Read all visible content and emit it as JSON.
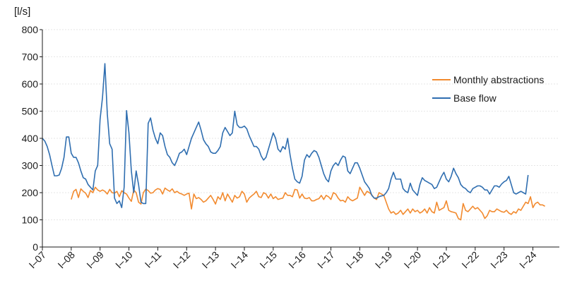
{
  "chart_data": {
    "type": "line",
    "title": "",
    "ylabel": "[l/s]",
    "xlabel": "",
    "ylim": [
      0,
      800
    ],
    "yticks": [
      0,
      100,
      200,
      300,
      400,
      500,
      600,
      700,
      800
    ],
    "grid": "horizontal",
    "legend_position": "right",
    "x_tick_labels": [
      "I–07",
      "I–08",
      "I–09",
      "I–10",
      "I–11",
      "I–12",
      "I–13",
      "I–14",
      "I–15",
      "I–16",
      "I–17",
      "I–18",
      "I–19",
      "I–20",
      "I–21",
      "I–22",
      "I–23",
      "I–24"
    ],
    "x_start": "2007-01",
    "x_end": "2024-12",
    "series": [
      {
        "name": "Monthly abstractions",
        "color": "#f28a2e",
        "start": "2008-01",
        "values": [
          175,
          205,
          212,
          182,
          214,
          205,
          198,
          182,
          208,
          200,
          220,
          210,
          205,
          210,
          205,
          195,
          212,
          200,
          198,
          205,
          185,
          207,
          200,
          195,
          180,
          168,
          210,
          200,
          165,
          158,
          200,
          213,
          208,
          198,
          200,
          210,
          215,
          212,
          195,
          217,
          210,
          205,
          214,
          200,
          205,
          198,
          195,
          190,
          195,
          198,
          140,
          195,
          178,
          182,
          175,
          165,
          170,
          180,
          190,
          175,
          158,
          185,
          175,
          200,
          170,
          195,
          180,
          165,
          190,
          180,
          185,
          205,
          195,
          165,
          180,
          188,
          195,
          205,
          185,
          182,
          200,
          195,
          180,
          195,
          178,
          185,
          175,
          178,
          180,
          200,
          190,
          190,
          185,
          212,
          210,
          180,
          195,
          180,
          178,
          182,
          170,
          170,
          175,
          178,
          190,
          175,
          190,
          185,
          175,
          200,
          195,
          180,
          170,
          172,
          165,
          185,
          175,
          170,
          175,
          180,
          220,
          205,
          190,
          205,
          200,
          192,
          180,
          175,
          200,
          195,
          190,
          165,
          140,
          125,
          130,
          120,
          125,
          135,
          120,
          130,
          140,
          125,
          140,
          130,
          135,
          125,
          130,
          140,
          125,
          145,
          130,
          125,
          165,
          135,
          140,
          145,
          170,
          135,
          130,
          128,
          125,
          105,
          100,
          160,
          135,
          130,
          140,
          150,
          140,
          145,
          135,
          125,
          105,
          115,
          135,
          130,
          130,
          140,
          135,
          130,
          128,
          135,
          125,
          120,
          130,
          125,
          140,
          135,
          150,
          165,
          160,
          185,
          145,
          160,
          165,
          155,
          155,
          150
        ]
      },
      {
        "name": "Base flow",
        "color": "#2f6eb0",
        "start": "2007-01",
        "values": [
          400,
          390,
          370,
          340,
          300,
          262,
          262,
          265,
          290,
          330,
          405,
          405,
          345,
          330,
          330,
          310,
          280,
          255,
          250,
          230,
          220,
          210,
          280,
          300,
          470,
          550,
          675,
          490,
          380,
          360,
          180,
          160,
          170,
          145,
          220,
          502,
          420,
          280,
          200,
          280,
          230,
          165,
          160,
          160,
          455,
          475,
          430,
          400,
          380,
          420,
          410,
          370,
          340,
          330,
          310,
          300,
          320,
          345,
          350,
          360,
          340,
          370,
          400,
          420,
          440,
          460,
          430,
          395,
          380,
          370,
          350,
          345,
          345,
          355,
          370,
          420,
          440,
          425,
          410,
          420,
          500,
          450,
          440,
          440,
          445,
          435,
          410,
          390,
          370,
          370,
          360,
          335,
          320,
          330,
          360,
          390,
          420,
          400,
          360,
          350,
          370,
          360,
          400,
          340,
          290,
          250,
          240,
          235,
          260,
          320,
          340,
          330,
          345,
          355,
          350,
          330,
          300,
          270,
          250,
          240,
          280,
          300,
          310,
          300,
          320,
          335,
          330,
          280,
          270,
          290,
          310,
          310,
          290,
          265,
          240,
          228,
          215,
          190,
          180,
          180,
          185,
          188,
          190,
          200,
          215,
          250,
          275,
          250,
          250,
          250,
          215,
          205,
          200,
          235,
          210,
          200,
          190,
          230,
          255,
          245,
          240,
          235,
          230,
          215,
          220,
          240,
          260,
          275,
          250,
          240,
          260,
          290,
          270,
          255,
          230,
          220,
          215,
          205,
          200,
          215,
          220,
          225,
          225,
          220,
          210,
          210,
          195,
          210,
          225,
          225,
          220,
          232,
          240,
          245,
          260,
          230,
          200,
          195,
          200,
          205,
          200,
          195,
          265
        ]
      }
    ]
  }
}
